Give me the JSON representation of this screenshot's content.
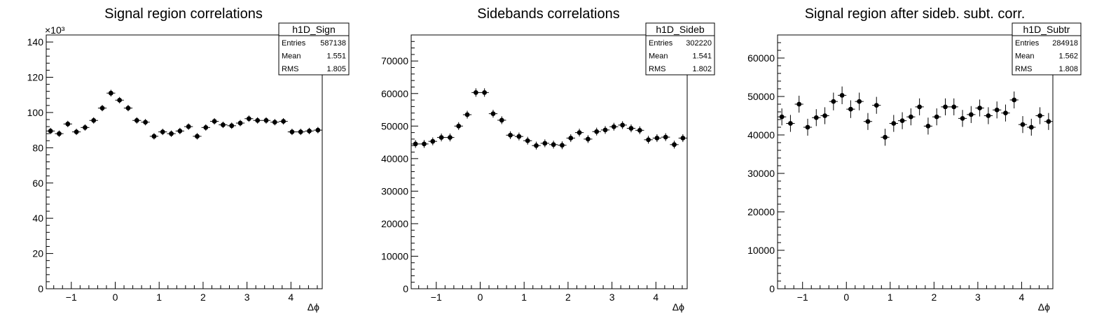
{
  "chart_data": [
    {
      "type": "scatter",
      "title": "Signal region correlations",
      "xlabel": "Δϕ",
      "ylabel": "",
      "xlim": [
        -1.5708,
        4.7124
      ],
      "ylim": [
        0,
        144000
      ],
      "exponent_label": "×10³",
      "y_tick_values": [
        0,
        20000,
        40000,
        60000,
        80000,
        100000,
        120000,
        140000
      ],
      "y_tick_labels": [
        "0",
        "20",
        "40",
        "60",
        "80",
        "100",
        "120",
        "140"
      ],
      "x_tick_values": [
        -1,
        0,
        1,
        2,
        3,
        4
      ],
      "x_tick_labels": [
        "−1",
        "0",
        "1",
        "2",
        "3",
        "4"
      ],
      "stats": {
        "name": "h1D_Sign",
        "rows": [
          {
            "label": "Entries",
            "value": "587138"
          },
          {
            "label": "Mean",
            "value": "1.551"
          },
          {
            "label": "RMS",
            "value": "1.805"
          }
        ]
      },
      "series": [
        {
          "values": [
            89500,
            88000,
            93500,
            89000,
            91500,
            95500,
            102500,
            111000,
            107000,
            102500,
            95500,
            94500,
            86500,
            89000,
            88000,
            89500,
            92000,
            86500,
            91500,
            95000,
            93000,
            92500,
            94000,
            96500,
            95500,
            95500,
            94500,
            95000,
            89000,
            89000,
            89500,
            90000
          ],
          "errors": [
            1800,
            1800,
            1800,
            1800,
            1800,
            1800,
            1800,
            1900,
            1800,
            1800,
            1800,
            1800,
            1800,
            1800,
            1800,
            1800,
            1800,
            1800,
            1800,
            1800,
            1800,
            1800,
            1800,
            1800,
            1800,
            1800,
            1800,
            1800,
            1800,
            1800,
            1800,
            1800
          ]
        }
      ]
    },
    {
      "type": "scatter",
      "title": "Sidebands correlations",
      "xlabel": "Δϕ",
      "ylabel": "",
      "xlim": [
        -1.5708,
        4.7124
      ],
      "ylim": [
        0,
        78000
      ],
      "y_tick_values": [
        0,
        10000,
        20000,
        30000,
        40000,
        50000,
        60000,
        70000
      ],
      "y_tick_labels": [
        "0",
        "10000",
        "20000",
        "30000",
        "40000",
        "50000",
        "60000",
        "70000"
      ],
      "x_tick_values": [
        -1,
        0,
        1,
        2,
        3,
        4
      ],
      "x_tick_labels": [
        "−1",
        "0",
        "1",
        "2",
        "3",
        "4"
      ],
      "stats": {
        "name": "h1D_Sideb",
        "rows": [
          {
            "label": "Entries",
            "value": "302220"
          },
          {
            "label": "Mean",
            "value": "1.541"
          },
          {
            "label": "RMS",
            "value": "1.802"
          }
        ]
      },
      "series": [
        {
          "values": [
            44500,
            44500,
            45300,
            46500,
            46500,
            50000,
            53500,
            60300,
            60300,
            53800,
            51800,
            47200,
            46800,
            45500,
            44000,
            44700,
            44300,
            44100,
            46300,
            48000,
            46000,
            48300,
            48800,
            49800,
            50300,
            49300,
            48700,
            45800,
            46300,
            46600,
            44300,
            46300
          ],
          "errors": [
            1200,
            1200,
            1200,
            1200,
            1200,
            1200,
            1200,
            1300,
            1300,
            1200,
            1200,
            1200,
            1200,
            1200,
            1200,
            1200,
            1200,
            1200,
            1200,
            1200,
            1200,
            1200,
            1200,
            1200,
            1200,
            1200,
            1200,
            1200,
            1200,
            1200,
            1200,
            1200
          ]
        }
      ]
    },
    {
      "type": "scatter",
      "title": "Signal region after sideb. subt. corr.",
      "xlabel": "Δϕ",
      "ylabel": "",
      "xlim": [
        -1.5708,
        4.7124
      ],
      "ylim": [
        0,
        66000
      ],
      "y_tick_values": [
        0,
        10000,
        20000,
        30000,
        40000,
        50000,
        60000
      ],
      "y_tick_labels": [
        "0",
        "10000",
        "20000",
        "30000",
        "40000",
        "50000",
        "60000"
      ],
      "x_tick_values": [
        -1,
        0,
        1,
        2,
        3,
        4
      ],
      "x_tick_labels": [
        "−1",
        "0",
        "1",
        "2",
        "3",
        "4"
      ],
      "stats": {
        "name": "h1D_Subtr",
        "rows": [
          {
            "label": "Entries",
            "value": "284918"
          },
          {
            "label": "Mean",
            "value": "1.562"
          },
          {
            "label": "RMS",
            "value": "1.808"
          }
        ]
      },
      "series": [
        {
          "values": [
            44700,
            43000,
            48000,
            42000,
            44500,
            45000,
            48700,
            50300,
            46700,
            48700,
            43500,
            47700,
            39400,
            43000,
            43700,
            44700,
            47300,
            42300,
            44700,
            47300,
            47300,
            44300,
            45300,
            47000,
            45000,
            46500,
            45700,
            49100,
            42700,
            42000,
            45000,
            43500
          ],
          "errors": [
            2200,
            2200,
            2200,
            2200,
            2200,
            2200,
            2300,
            2300,
            2300,
            2300,
            2200,
            2200,
            2200,
            2200,
            2200,
            2200,
            2200,
            2200,
            2200,
            2200,
            2200,
            2200,
            2200,
            2200,
            2200,
            2200,
            2200,
            2200,
            2200,
            2200,
            2200,
            2200
          ]
        }
      ]
    }
  ]
}
